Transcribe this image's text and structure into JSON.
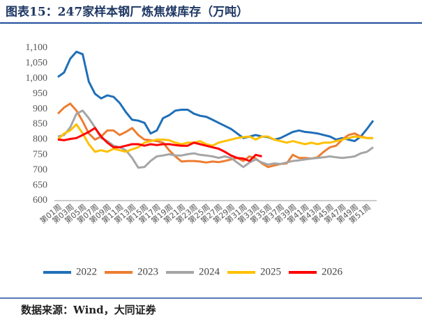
{
  "chart_data": {
    "type": "line",
    "title": "图表15：247家样本钢厂炼焦煤库存（万吨）",
    "source": "数据来源：Wind，大同证券",
    "categories": [
      "第01周",
      null,
      "第03周",
      null,
      "第05周",
      null,
      "第07周",
      null,
      "第09周",
      null,
      "第11周",
      null,
      "第13周",
      null,
      "第15周",
      null,
      "第17周",
      null,
      "第19周",
      null,
      "第21周",
      null,
      "第23周",
      null,
      "第25周",
      null,
      "第27周",
      null,
      "第29周",
      null,
      "第31周",
      null,
      "第33周",
      null,
      "第35周",
      null,
      "第37周",
      null,
      "第39周",
      null,
      "第41周",
      null,
      "第43周",
      null,
      "第45周",
      null,
      "第47周",
      null,
      "第49周",
      null,
      "第51周",
      null
    ],
    "ylim": [
      600,
      1100
    ],
    "yticks": [
      600,
      650,
      700,
      750,
      800,
      850,
      900,
      950,
      {
        "value": 1000,
        "label": "1,000"
      },
      {
        "value": 1050,
        "label": "1,050"
      },
      {
        "value": 1100,
        "label": "1,100"
      }
    ],
    "grid": false,
    "legend": "bottom",
    "series": [
      {
        "name": "2022",
        "color": "#1f6fb8",
        "values": [
          1005,
          1020,
          1065,
          1088,
          1080,
          990,
          950,
          935,
          945,
          940,
          920,
          890,
          865,
          862,
          855,
          820,
          830,
          870,
          880,
          895,
          898,
          898,
          885,
          878,
          875,
          865,
          855,
          845,
          835,
          820,
          805,
          810,
          815,
          810,
          808,
          800,
          805,
          815,
          825,
          830,
          825,
          823,
          820,
          815,
          810,
          800,
          805,
          800,
          795,
          810,
          835,
          862
        ]
      },
      {
        "name": "2023",
        "color": "#ed7d31",
        "values": [
          885,
          905,
          918,
          895,
          860,
          820,
          800,
          810,
          830,
          830,
          815,
          825,
          838,
          815,
          800,
          798,
          795,
          790,
          765,
          745,
          728,
          730,
          730,
          728,
          725,
          728,
          726,
          730,
          735,
          740,
          730,
          745,
          738,
          722,
          710,
          715,
          720,
          722,
          750,
          740,
          740,
          738,
          742,
          760,
          775,
          780,
          800,
          815,
          820,
          810,
          805,
          805
        ]
      },
      {
        "name": "2024",
        "color": "#a5a5a5",
        "values": [
          810,
          815,
          840,
          885,
          895,
          870,
          840,
          805,
          795,
          780,
          775,
          765,
          740,
          708,
          710,
          730,
          745,
          748,
          752,
          748,
          748,
          752,
          755,
          750,
          748,
          745,
          740,
          745,
          740,
          725,
          710,
          725,
          735,
          725,
          718,
          722,
          720,
          725,
          730,
          732,
          735,
          738,
          740,
          742,
          745,
          742,
          740,
          742,
          745,
          755,
          760,
          775
        ]
      },
      {
        "name": "2025",
        "color": "#ffc000",
        "values": [
          800,
          820,
          830,
          850,
          820,
          785,
          760,
          765,
          760,
          770,
          765,
          760,
          768,
          775,
          790,
          795,
          800,
          800,
          798,
          790,
          785,
          790,
          790,
          795,
          785,
          780,
          790,
          795,
          800,
          805,
          808,
          810,
          800,
          810,
          810,
          800,
          795,
          790,
          795,
          790,
          785,
          790,
          785,
          790,
          790,
          795,
          800,
          805,
          810,
          808,
          805,
          805
        ]
      },
      {
        "name": "2026",
        "color": "#ff0000",
        "values": [
          800,
          798,
          802,
          805,
          815,
          825,
          838,
          810,
          790,
          775,
          775,
          780,
          785,
          785,
          780,
          785,
          782,
          785,
          785,
          782,
          780,
          780,
          790,
          785,
          780,
          775,
          770,
          760,
          748,
          740,
          738,
          730,
          750,
          745,
          null,
          null,
          null,
          null,
          null,
          null,
          null,
          null,
          null,
          null,
          null,
          null,
          null,
          null,
          null,
          null,
          null,
          null
        ]
      }
    ]
  }
}
